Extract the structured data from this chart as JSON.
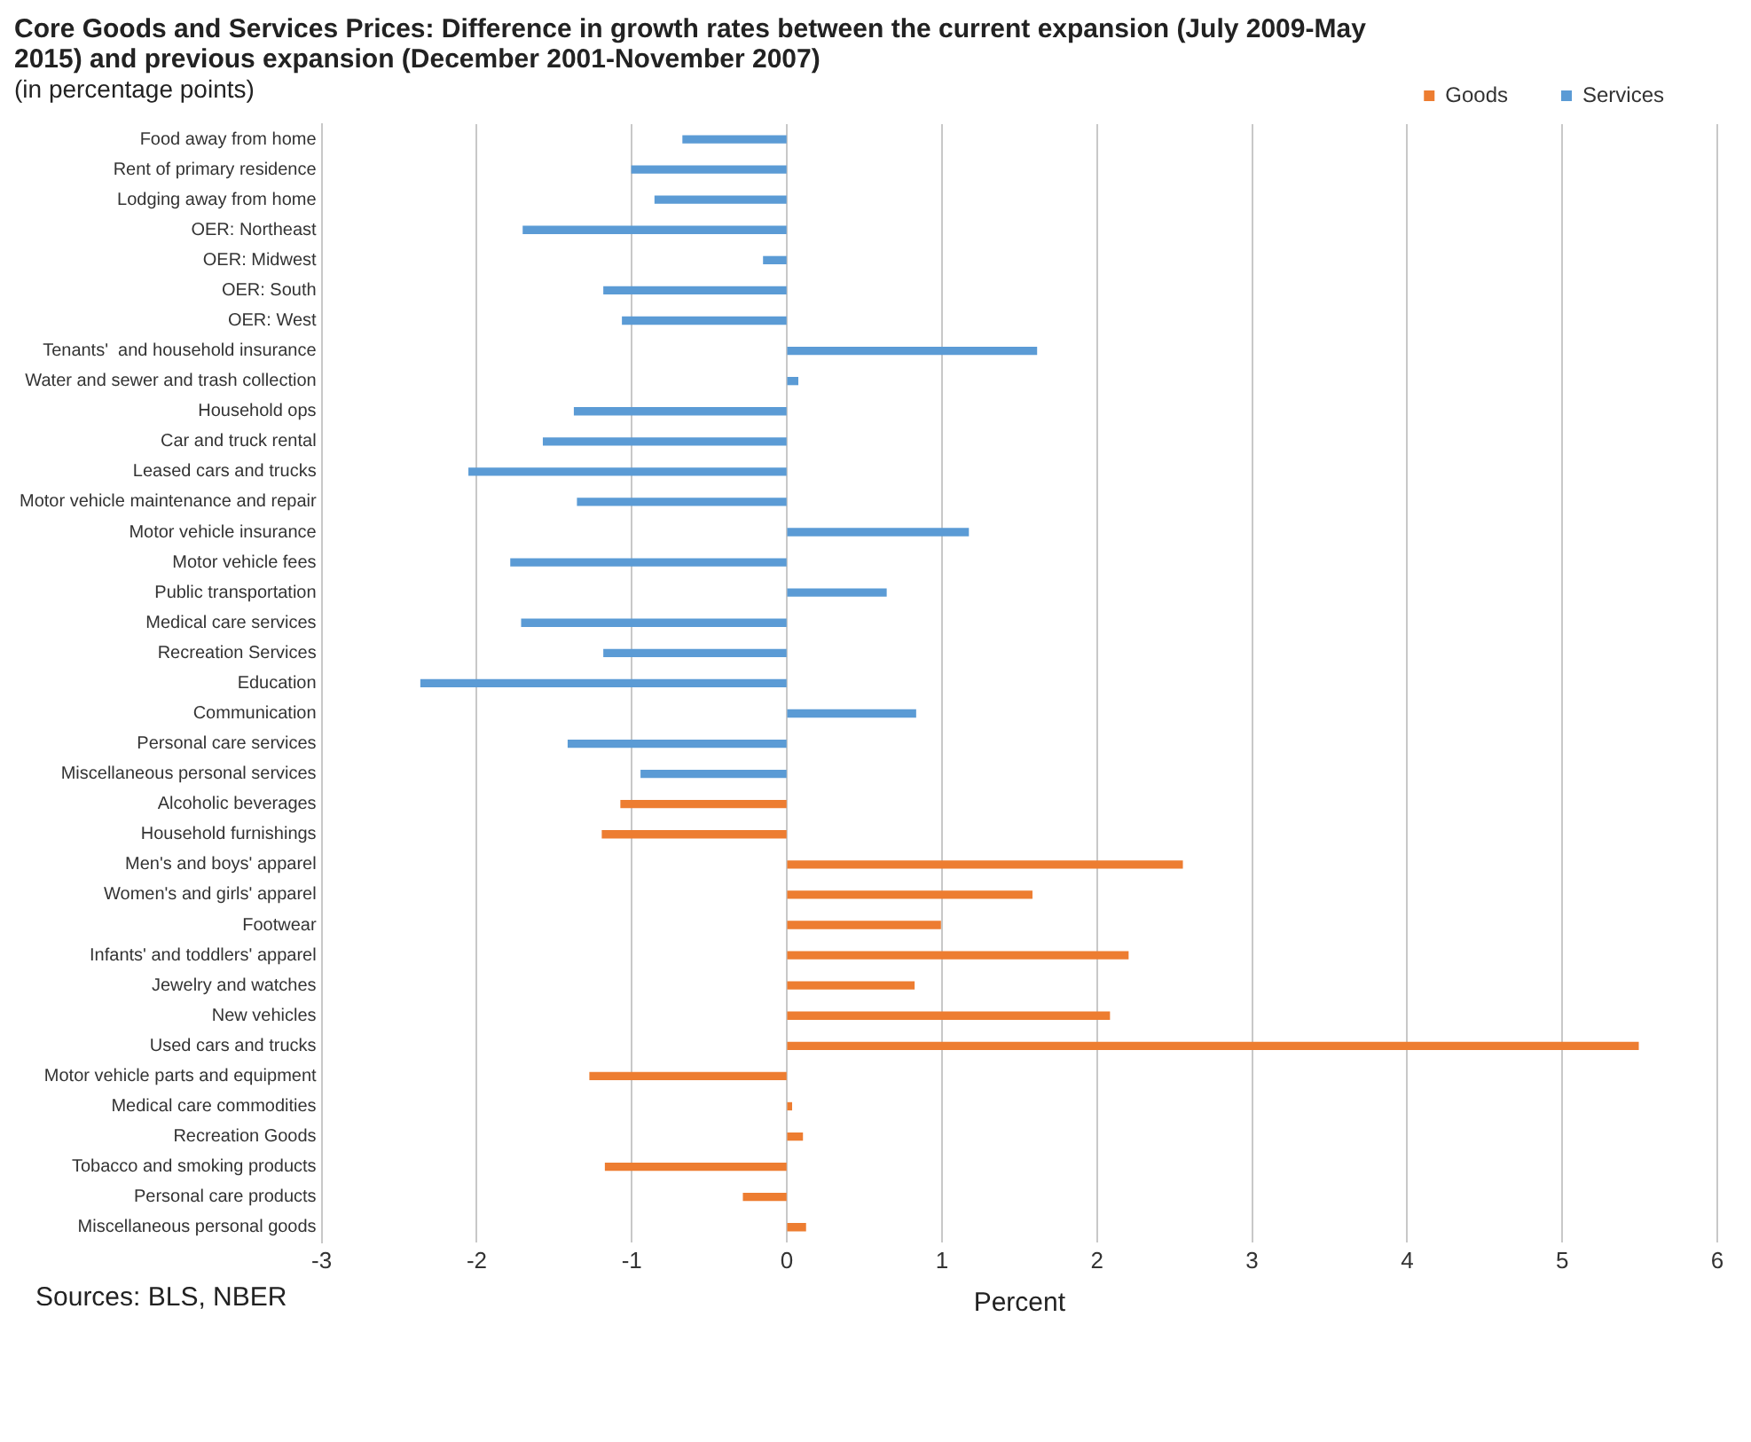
{
  "chart_data": {
    "type": "bar",
    "orientation": "horizontal",
    "title": "Core Goods and Services Prices: Difference in growth rates between the current expansion (July  2009-May 2015) and previous expansion (December 2001-November 2007)",
    "subtitle": "(in percentage points)",
    "xlabel": "Percent",
    "annotations": [
      "Sources: BLS, NBER"
    ],
    "categories": [
      "Food away from home",
      "Rent of primary residence",
      "Lodging away from home",
      "OER: Northeast",
      "OER: Midwest",
      "OER: South",
      "OER: West",
      "Tenants'  and household insurance",
      "Water and sewer and trash collection",
      "Household ops",
      "Car and truck rental",
      "Leased cars and trucks",
      "Motor vehicle maintenance and repair",
      "Motor vehicle insurance",
      "Motor vehicle fees",
      "Public transportation",
      "Medical care services",
      "Recreation Services",
      "Education",
      "Communication",
      "Personal care services",
      "Miscellaneous personal services",
      "Alcoholic beverages",
      "Household furnishings",
      "Men's and boys' apparel",
      "Women's and girls' apparel",
      "Footwear",
      "Infants' and toddlers' apparel",
      "Jewelry and watches",
      "New vehicles",
      "Used cars and trucks",
      "Motor vehicle parts and equipment",
      "Medical care commodities",
      "Recreation Goods",
      "Tobacco and smoking products",
      "Personal care products",
      "Miscellaneous personal goods"
    ],
    "series": [
      {
        "name": "Goods",
        "color": "#ed7d31",
        "values": [
          null,
          null,
          null,
          null,
          null,
          null,
          null,
          null,
          null,
          null,
          null,
          null,
          null,
          null,
          null,
          null,
          null,
          null,
          null,
          null,
          null,
          null,
          -1.07,
          -1.19,
          2.55,
          1.58,
          0.99,
          2.2,
          0.82,
          2.08,
          5.49,
          -1.27,
          0.03,
          0.1,
          -1.17,
          -0.28,
          0.12
        ]
      },
      {
        "name": "Services",
        "color": "#5b9bd5",
        "values": [
          -0.67,
          -1.0,
          -0.85,
          -1.7,
          -0.15,
          -1.18,
          -1.06,
          1.61,
          0.07,
          -1.37,
          -1.57,
          -2.05,
          -1.35,
          1.17,
          -1.78,
          0.64,
          -1.71,
          -1.18,
          -2.36,
          0.83,
          -1.41,
          -0.94,
          null,
          null,
          null,
          null,
          null,
          null,
          null,
          null,
          null,
          null,
          null,
          null,
          null,
          null,
          null
        ]
      }
    ],
    "xlim": [
      -3,
      6
    ],
    "xticks": [
      -3,
      -2,
      -1,
      0,
      1,
      2,
      3,
      4,
      5,
      6
    ],
    "grid": "x",
    "legend": "top right"
  }
}
